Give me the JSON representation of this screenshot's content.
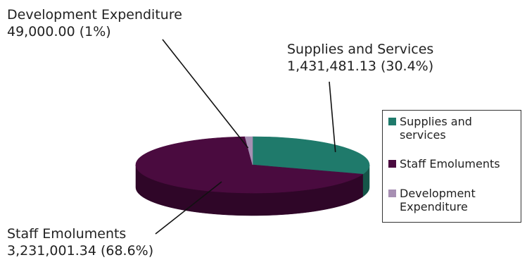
{
  "chart_data": {
    "type": "pie",
    "title": "",
    "three_d": true,
    "slices": [
      {
        "label": "Supplies and Services",
        "legend_label": "Supplies and services",
        "value": 1431481.13,
        "value_text": "1,431,481.13",
        "percent_text": "(30.4%)",
        "color": "#1f7a6b"
      },
      {
        "label": "Staff Emoluments",
        "legend_label": "Staff Emoluments",
        "value": 3231001.34,
        "value_text": "3,231,001.34",
        "percent_text": "(68.6%)",
        "color": "#4a0b3f"
      },
      {
        "label": "Development Expenditure",
        "legend_label": "Development Expenditure",
        "value": 49000.0,
        "value_text": "49,000.00",
        "percent_text": "(1%)",
        "color": "#a78fb3"
      }
    ],
    "legend_position": "right",
    "colors": {
      "supplies_side": "#155548",
      "staff_side": "#2f0628",
      "development_side": "#7a6585",
      "leader_line": "#111111"
    }
  },
  "callouts": {
    "development": {
      "name": "Development Expenditure",
      "amount": "49,000.00 (1%)"
    },
    "supplies": {
      "name": "Supplies and Services",
      "amount": "1,431,481.13 (30.4%)"
    },
    "staff": {
      "name": "Staff Emoluments",
      "amount": "3,231,001.34 (68.6%)"
    }
  },
  "legend": {
    "items": [
      {
        "label": "Supplies and services",
        "color": "#1f7a6b"
      },
      {
        "label": "Staff Emoluments",
        "color": "#4a0b3f"
      },
      {
        "label": "Development Expenditure",
        "color": "#a78fb3"
      }
    ]
  }
}
